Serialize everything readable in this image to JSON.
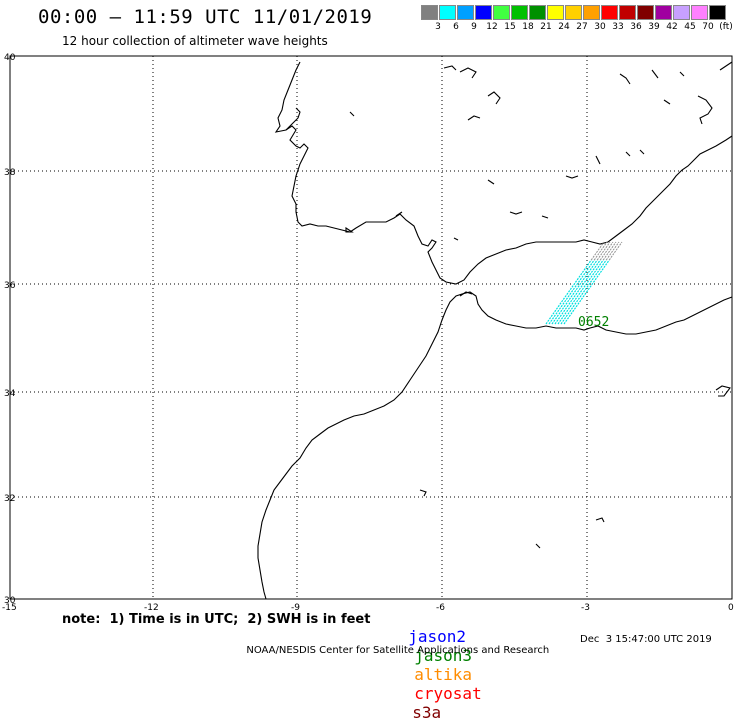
{
  "header": {
    "title": "00:00 – 11:59 UTC 11/01/2019",
    "subtitle": "12 hour collection of altimeter wave heights"
  },
  "legend": {
    "unit": "(ft)",
    "swatches": [
      {
        "color": "#808080",
        "label": "3"
      },
      {
        "color": "#00ffff",
        "label": "6"
      },
      {
        "color": "#00a0ff",
        "label": "9"
      },
      {
        "color": "#0000ff",
        "label": "12"
      },
      {
        "color": "#40ff40",
        "label": "15"
      },
      {
        "color": "#00c000",
        "label": "18"
      },
      {
        "color": "#009000",
        "label": "21"
      },
      {
        "color": "#ffff00",
        "label": "24"
      },
      {
        "color": "#ffd000",
        "label": "27"
      },
      {
        "color": "#ffa000",
        "label": "30"
      },
      {
        "color": "#ff0000",
        "label": "33"
      },
      {
        "color": "#c00000",
        "label": "36"
      },
      {
        "color": "#800000",
        "label": "39"
      },
      {
        "color": "#a000a0",
        "label": "42"
      },
      {
        "color": "#c8a0ff",
        "label": "45"
      },
      {
        "color": "#ff80ff",
        "label": "70"
      },
      {
        "color": "#000000",
        "label": ""
      }
    ]
  },
  "map": {
    "lat_labels": [
      "40",
      "38",
      "36",
      "34",
      "32",
      "30"
    ],
    "lon_labels": [
      "-15",
      "-12",
      "-9",
      "-6",
      "-3",
      "0"
    ],
    "lat_range": [
      30,
      40
    ],
    "lon_range": [
      -15,
      0
    ],
    "track_label": "0652",
    "track_label_color": "#008000",
    "track_color": "#00e0e0",
    "track_gray_color": "#909090"
  },
  "footer": {
    "note": "note:  1) Time is in UTC;  2) SWH is in feet",
    "satellites": [
      {
        "name": "jason2",
        "color": "#0000ff"
      },
      {
        "name": "jason3",
        "color": "#008000"
      },
      {
        "name": "altika",
        "color": "#ff8c00"
      },
      {
        "name": "cryosat",
        "color": "#ff0000"
      },
      {
        "name": "s3a",
        "color": "#800000"
      }
    ],
    "credit": "NOAA/NESDIS Center for Satellite Applications and Research",
    "timestamp": "Dec  3 15:47:00 UTC 2019"
  }
}
